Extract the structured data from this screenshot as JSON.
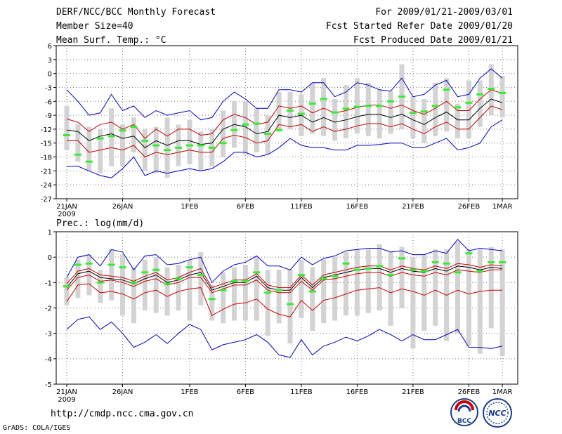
{
  "header": {
    "title": "DERF/NCC/BCC Monthly Forecast",
    "member_size": "Member Size=40",
    "variable_temp": "Mean Surf. Temp.: °C",
    "period": "For 2009/01/21-2009/03/01",
    "started": "Fcst Started Refer Date 2009/01/20",
    "produced": "Fcst Produced Date 2009/01/21"
  },
  "footer": {
    "url": "http://cmdp.ncc.cma.gov.cn",
    "credit": "GrADS: COLA/IGES",
    "logo_bcc": "BCC",
    "logo_ncc": "NCC"
  },
  "colors": {
    "ensemble_mean": "#000000",
    "inner_band": "#cc0000",
    "outer_band": "#0000cc",
    "spread_bar": "#d3d3d3",
    "observed": "#33ee33"
  },
  "chart_data": [
    {
      "type": "line",
      "title": "Mean Surf. Temp.: °C",
      "x_ticks": [
        "21JAN\n2009",
        "26JAN",
        "1FEB",
        "6FEB",
        "11FEB",
        "16FEB",
        "21FEB",
        "26FEB",
        "1MAR"
      ],
      "x_tick_days": [
        0,
        5,
        11,
        16,
        21,
        26,
        31,
        36,
        39
      ],
      "ylim": [
        -27,
        6
      ],
      "yticks": [
        -27,
        -24,
        -21,
        -18,
        -15,
        -12,
        -9,
        -6,
        -3,
        0,
        3,
        6
      ],
      "grid": true,
      "series": [
        {
          "name": "mean",
          "color": "#000000",
          "values": [
            -12.2,
            -12.5,
            -14.5,
            -13.5,
            -13,
            -14,
            -13.5,
            -16,
            -14.5,
            -15.5,
            -14.5,
            -14.5,
            -15.3,
            -15,
            -12,
            -11,
            -11.5,
            -13,
            -12.5,
            -9,
            -9.5,
            -9,
            -10.5,
            -9.5,
            -10.5,
            -10,
            -9.3,
            -8.8,
            -8.8,
            -9.5,
            -8.8,
            -10,
            -11,
            -9.5,
            -8.3,
            -10,
            -10,
            -7.5,
            -5.5,
            -6.3
          ]
        },
        {
          "name": "upper-red",
          "color": "#cc0000",
          "values": [
            -9.8,
            -10.5,
            -12.5,
            -11,
            -10.5,
            -12,
            -11,
            -14,
            -12,
            -13.5,
            -12,
            -12,
            -13.3,
            -13,
            -10,
            -8.8,
            -9.5,
            -11,
            -10.5,
            -7,
            -7.5,
            -7,
            -8.5,
            -7.5,
            -8.5,
            -8,
            -7.3,
            -6.8,
            -6.8,
            -7.5,
            -6.8,
            -8,
            -8.8,
            -7.5,
            -6,
            -8,
            -8,
            -5.5,
            -3.5,
            -4.3
          ]
        },
        {
          "name": "lower-red",
          "color": "#cc0000",
          "values": [
            -14.5,
            -14.5,
            -17,
            -16.5,
            -16,
            -16.5,
            -15.5,
            -18,
            -17,
            -17.5,
            -17,
            -16.5,
            -17,
            -17,
            -14,
            -13.3,
            -13.8,
            -15,
            -14.5,
            -11,
            -11.5,
            -11,
            -12.5,
            -11.5,
            -12.5,
            -12,
            -11.3,
            -10.8,
            -10.8,
            -11.5,
            -10.8,
            -12,
            -13,
            -11.5,
            -10.5,
            -12,
            -12,
            -9.5,
            -7,
            -7.8
          ]
        },
        {
          "name": "upper-blue",
          "color": "#0000cc",
          "values": [
            -3.5,
            -6,
            -9,
            -8.5,
            -4.5,
            -8,
            -7,
            -9.5,
            -8,
            -9,
            -8.5,
            -8,
            -10,
            -9.5,
            -6,
            -4,
            -5.5,
            -7.5,
            -7.5,
            -3.5,
            -3.5,
            -4,
            -2,
            -2,
            -5,
            -4,
            -2,
            -2.5,
            -3.5,
            -3.8,
            -1,
            -5,
            -4.5,
            -2.5,
            -1.5,
            -5,
            -4.5,
            -1,
            1,
            -1
          ]
        },
        {
          "name": "lower-blue",
          "color": "#0000cc",
          "values": [
            -20,
            -20,
            -21,
            -22,
            -22.5,
            -20.5,
            -18,
            -22,
            -21,
            -21.5,
            -21,
            -20.5,
            -21,
            -20.5,
            -19,
            -17,
            -17,
            -18,
            -17.5,
            -16,
            -14,
            -15.5,
            -16,
            -16,
            -16.5,
            -16.5,
            -15.5,
            -15.5,
            -15.3,
            -15,
            -15,
            -16,
            -16,
            -15,
            -14,
            -16.5,
            -16,
            -15,
            -11.5,
            -10
          ]
        },
        {
          "name": "obs",
          "color": "#33ee33",
          "values": [
            -13.3,
            -17.5,
            -19,
            -14,
            -13.5,
            -12.3,
            -11.5,
            -14.5,
            -15.5,
            -16.5,
            -16,
            -15.5,
            -15.5,
            -16,
            -15,
            -12.2,
            -11,
            -10.8,
            -13,
            -12.2,
            -8,
            -8.7,
            -6.5,
            -5.5,
            -8.4,
            -7.6,
            -7.2,
            -7,
            -7,
            -6,
            -5,
            -8.5,
            -8.2,
            -7,
            -3.5,
            -7.3,
            -6.3,
            -4.5,
            -3.3,
            -4.2
          ]
        },
        {
          "name": "spread-top",
          "color": "#d3d3d3",
          "values": [
            -7,
            -11,
            -11.5,
            -12,
            -7.5,
            -11,
            -9.5,
            -12,
            -11.5,
            -9.5,
            -11,
            -10,
            -12.5,
            -12,
            -8,
            -6,
            -6,
            -7.5,
            -9,
            -4,
            -4,
            -4.5,
            -2,
            -1,
            -5.5,
            -2.5,
            -1,
            -2,
            -3.5,
            -3.8,
            2,
            -5,
            -5.5,
            -2,
            -1,
            -6.5,
            -1.5,
            -1.5,
            2,
            -0.5
          ]
        },
        {
          "name": "spread-bottom",
          "color": "#d3d3d3",
          "values": [
            -16.5,
            -19,
            -21,
            -21.5,
            -20,
            -20,
            -17,
            -21,
            -21.5,
            -22.5,
            -20,
            -19.5,
            -21,
            -20,
            -18,
            -16,
            -17.5,
            -17,
            -17.5,
            -12.5,
            -12,
            -13.5,
            -13,
            -13.5,
            -14.5,
            -14,
            -13,
            -13.5,
            -14,
            -13,
            -12,
            -14,
            -15,
            -13.5,
            -12.5,
            -14,
            -14,
            -11.5,
            -9,
            -9.5
          ]
        }
      ]
    },
    {
      "type": "line",
      "title": "Prec.: log(mm/d)",
      "x_ticks": [
        "21JAN\n2009",
        "26JAN",
        "1FEB",
        "6FEB",
        "11FEB",
        "16FEB",
        "21FEB",
        "26FEB",
        "1MAR"
      ],
      "x_tick_days": [
        0,
        5,
        11,
        16,
        21,
        26,
        31,
        36,
        39
      ],
      "ylim": [
        -5,
        1
      ],
      "yticks": [
        -5,
        -4,
        -3,
        -2,
        -1,
        0,
        1
      ],
      "grid": true,
      "series": [
        {
          "name": "mean",
          "color": "#000000",
          "values": [
            -1.2,
            -0.65,
            -0.55,
            -0.8,
            -0.85,
            -0.9,
            -1.05,
            -0.85,
            -0.7,
            -1.0,
            -0.9,
            -0.7,
            -0.6,
            -1.3,
            -1.15,
            -1.0,
            -1.0,
            -0.75,
            -1.2,
            -1.3,
            -1.3,
            -0.8,
            -1.2,
            -0.8,
            -0.7,
            -0.6,
            -0.5,
            -0.45,
            -0.45,
            -0.6,
            -0.45,
            -0.55,
            -0.6,
            -0.45,
            -0.55,
            -0.35,
            -0.4,
            -0.5,
            -0.4,
            -0.45
          ]
        },
        {
          "name": "upper-red",
          "color": "#cc0000",
          "values": [
            -1.05,
            -0.55,
            -0.45,
            -0.7,
            -0.75,
            -0.8,
            -0.95,
            -0.75,
            -0.6,
            -0.9,
            -0.8,
            -0.6,
            -0.45,
            -1.2,
            -1.05,
            -0.9,
            -0.9,
            -0.65,
            -1.1,
            -1.2,
            -1.2,
            -0.7,
            -1.1,
            -0.7,
            -0.6,
            -0.5,
            -0.4,
            -0.35,
            -0.35,
            -0.5,
            -0.35,
            -0.45,
            -0.5,
            -0.35,
            -0.45,
            -0.25,
            -0.3,
            -0.4,
            -0.3,
            -0.35
          ]
        },
        {
          "name": "mid-red",
          "color": "#cc0000",
          "values": [
            -1.3,
            -0.8,
            -0.7,
            -0.95,
            -0.9,
            -1.0,
            -1.15,
            -0.95,
            -0.85,
            -1.1,
            -1.0,
            -0.8,
            -0.8,
            -1.4,
            -1.25,
            -1.1,
            -1.1,
            -0.9,
            -1.3,
            -1.4,
            -1.4,
            -0.95,
            -1.3,
            -0.9,
            -0.85,
            -0.75,
            -0.65,
            -0.6,
            -0.6,
            -0.75,
            -0.6,
            -0.7,
            -0.75,
            -0.6,
            -0.7,
            -0.5,
            -0.55,
            -0.6,
            -0.5,
            -0.5
          ]
        },
        {
          "name": "lower-red",
          "color": "#cc0000",
          "values": [
            -1.75,
            -1.1,
            -1.05,
            -1.4,
            -1.35,
            -1.45,
            -1.65,
            -1.4,
            -1.3,
            -1.55,
            -1.35,
            -1.25,
            -1.2,
            -2.3,
            -2.05,
            -1.85,
            -1.8,
            -1.65,
            -2.05,
            -2.25,
            -2.35,
            -1.7,
            -2.1,
            -1.7,
            -1.6,
            -1.45,
            -1.3,
            -1.25,
            -1.2,
            -1.4,
            -1.25,
            -1.35,
            -1.5,
            -1.3,
            -1.5,
            -1.3,
            -1.45,
            -1.35,
            -1.3,
            -1.3
          ]
        },
        {
          "name": "upper-blue",
          "color": "#0000cc",
          "values": [
            -0.8,
            0,
            0.1,
            -0.35,
            0.3,
            0.2,
            -0.5,
            0.05,
            0.1,
            -0.3,
            -0.25,
            -0.1,
            0,
            -1.0,
            -0.55,
            -0.3,
            -0.2,
            0.05,
            -0.35,
            -0.35,
            -0.5,
            0,
            -0.3,
            -0.05,
            0.05,
            0.25,
            0.3,
            0.35,
            0.35,
            0.2,
            0.25,
            0.1,
            0.1,
            0.25,
            0.15,
            0.7,
            0.25,
            0.35,
            0.3,
            0.25
          ]
        },
        {
          "name": "lower-blue",
          "color": "#0000cc",
          "values": [
            -2.85,
            -2.45,
            -2.35,
            -2.85,
            -2.55,
            -3.0,
            -3.55,
            -3.35,
            -3.05,
            -3.4,
            -3.0,
            -2.65,
            -2.85,
            -3.65,
            -3.45,
            -3.35,
            -3.25,
            -3.05,
            -3.35,
            -3.85,
            -3.95,
            -3.25,
            -3.85,
            -3.5,
            -3.35,
            -3.15,
            -3.3,
            -3.1,
            -2.85,
            -3.05,
            -3.3,
            -3.05,
            -3.25,
            -3.25,
            -3.05,
            -2.85,
            -3.55,
            -3.55,
            -3.6,
            -3.5
          ]
        },
        {
          "name": "obs",
          "color": "#33ee33",
          "values": [
            -1.15,
            -0.3,
            -0.25,
            -1.0,
            -0.3,
            -0.4,
            -1.0,
            -0.6,
            -0.5,
            -1.05,
            -0.85,
            -0.4,
            -0.7,
            -1.65,
            -1.3,
            -0.95,
            -0.95,
            -0.6,
            -1.4,
            -1.3,
            -1.85,
            -0.7,
            -1.35,
            -0.85,
            -0.75,
            -0.25,
            -0.5,
            -0.45,
            -0.35,
            -0.7,
            -0.05,
            -0.5,
            -0.55,
            -0.2,
            -0.25,
            -0.6,
            0.15,
            -0.55,
            -0.2,
            -0.2
          ]
        },
        {
          "name": "spread-top",
          "color": "#d3d3d3",
          "values": [
            -0.8,
            -0.1,
            0.1,
            -0.5,
            0.3,
            0.1,
            -0.4,
            -0.1,
            0,
            -0.4,
            -0.3,
            -0.1,
            0.2,
            -1.1,
            -0.6,
            -0.4,
            -0.3,
            0,
            -0.5,
            -0.5,
            -0.5,
            -0.1,
            -0.4,
            -0.1,
            0,
            0.2,
            0.3,
            0.3,
            0.5,
            0.2,
            0.4,
            0,
            0.1,
            0.3,
            0.3,
            0.6,
            0.3,
            0.3,
            0.4,
            0.3
          ]
        },
        {
          "name": "spread-bottom",
          "color": "#d3d3d3",
          "values": [
            -1.9,
            -1.6,
            -1.5,
            -1.8,
            -1.7,
            -2.3,
            -2.6,
            -2.1,
            -2.2,
            -2.3,
            -2.1,
            -2.5,
            -1.9,
            -2.5,
            -2.6,
            -2.5,
            -2.5,
            -2.5,
            -3.1,
            -2.6,
            -3.4,
            -2.4,
            -2.9,
            -2.6,
            -2.5,
            -2.3,
            -2.3,
            -2.2,
            -2.1,
            -2.7,
            -2.0,
            -3.6,
            -2.9,
            -2.7,
            -3.3,
            -3.0,
            -3.5,
            -3.8,
            -2.8,
            -3.9
          ]
        }
      ]
    }
  ]
}
